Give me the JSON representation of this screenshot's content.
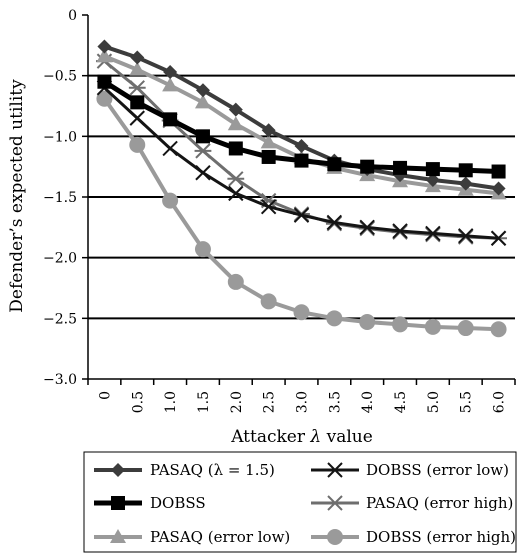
{
  "chart_data": {
    "type": "line",
    "title": "",
    "xlabel": "Attacker λ value",
    "xlabel_parts": [
      "Attacker ",
      "λ",
      " value"
    ],
    "ylabel": "Defender’s expected utility",
    "ylim": [
      -3.0,
      0
    ],
    "yticks": [
      0,
      -0.5,
      -1.0,
      -1.5,
      -2.0,
      -2.5,
      -3.0
    ],
    "ytick_labels": [
      "0",
      "−0.5",
      "−1.0",
      "−1.5",
      "−2.0",
      "−2.5",
      "−3.0"
    ],
    "categories": [
      "0",
      "0.5",
      "1.0",
      "1.5",
      "2.0",
      "2.5",
      "3.0",
      "3.5",
      "4.0",
      "4.5",
      "5.0",
      "5.5",
      "6.0"
    ],
    "grid": "horizontal",
    "legend_placement": "bottom",
    "series": [
      {
        "name": "PASAQ (λ = 1.5)",
        "color": "#3c3c3c",
        "marker": "diamond",
        "width": 4,
        "values": [
          -0.26,
          -0.35,
          -0.47,
          -0.62,
          -0.78,
          -0.95,
          -1.08,
          -1.2,
          -1.27,
          -1.32,
          -1.36,
          -1.39,
          -1.43
        ]
      },
      {
        "name": "DOBSS",
        "color": "#000000",
        "marker": "square",
        "width": 5,
        "values": [
          -0.55,
          -0.72,
          -0.86,
          -1.0,
          -1.1,
          -1.17,
          -1.2,
          -1.23,
          -1.25,
          -1.26,
          -1.27,
          -1.28,
          -1.29
        ]
      },
      {
        "name": "PASAQ (error low)",
        "color": "#9a9a9a",
        "marker": "triangle",
        "width": 4,
        "values": [
          -0.34,
          -0.45,
          -0.58,
          -0.72,
          -0.9,
          -1.05,
          -1.18,
          -1.26,
          -1.32,
          -1.37,
          -1.41,
          -1.44,
          -1.47
        ]
      },
      {
        "name": "DOBSS (error low)",
        "color": "#141414",
        "marker": "x",
        "width": 3,
        "values": [
          -0.6,
          -0.85,
          -1.1,
          -1.3,
          -1.47,
          -1.58,
          -1.65,
          -1.71,
          -1.75,
          -1.78,
          -1.8,
          -1.82,
          -1.84
        ]
      },
      {
        "name": "PASAQ (error high)",
        "color": "#6e6e6e",
        "marker": "asterisk",
        "width": 3,
        "values": [
          -0.38,
          -0.6,
          -0.87,
          -1.12,
          -1.35,
          -1.53,
          -1.64,
          -1.72,
          -1.76,
          -1.79,
          -1.81,
          -1.83,
          -1.84
        ]
      },
      {
        "name": "DOBSS (error high)",
        "color": "#9a9a9a",
        "marker": "circle",
        "width": 4,
        "values": [
          -0.69,
          -1.07,
          -1.53,
          -1.93,
          -2.2,
          -2.36,
          -2.45,
          -2.5,
          -2.53,
          -2.55,
          -2.57,
          -2.58,
          -2.59
        ]
      }
    ]
  }
}
